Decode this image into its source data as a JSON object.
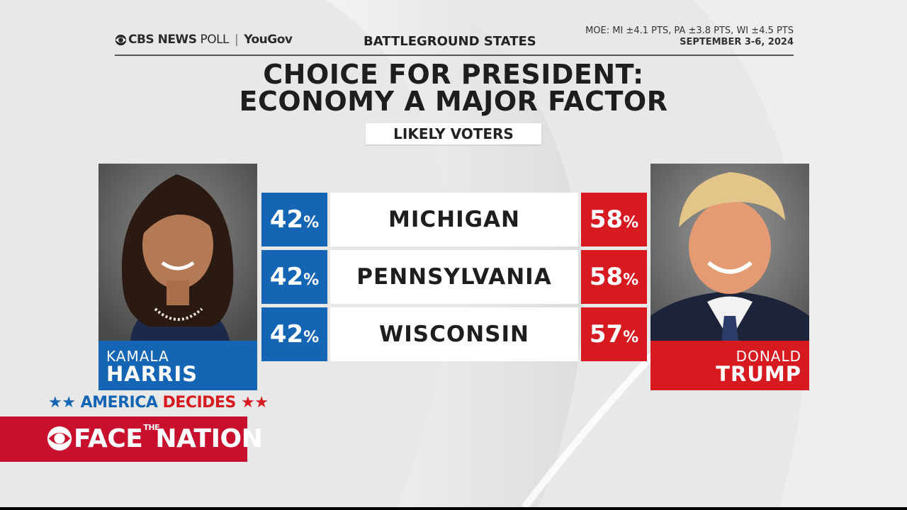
{
  "header": {
    "network": "CBS NEWS",
    "poll_label": "POLL",
    "partner": "YouGov",
    "topic": "BATTLEGROUND STATES",
    "moe": "MOE: MI ±4.1 PTS, PA ±3.8 PTS, WI ±4.5 PTS",
    "dates": "SEPTEMBER 3-6, 2024"
  },
  "title_line1": "CHOICE FOR PRESIDENT:",
  "title_line2": "ECONOMY A MAJOR FACTOR",
  "subtitle": "LIKELY VOTERS",
  "candidates": {
    "left": {
      "first": "KAMALA",
      "last": "HARRIS",
      "color": "#1565b5"
    },
    "right": {
      "first": "DONALD",
      "last": "TRUMP",
      "color": "#d71920"
    }
  },
  "chart_data": {
    "type": "table",
    "title": "CHOICE FOR PRESIDENT: ECONOMY A MAJOR FACTOR",
    "subtitle": "LIKELY VOTERS",
    "columns": [
      "HARRIS",
      "STATE",
      "TRUMP"
    ],
    "rows": [
      {
        "state": "MICHIGAN",
        "harris": 42,
        "trump": 58,
        "harris_text": "42",
        "trump_text": "58",
        "unit": "%"
      },
      {
        "state": "PENNSYLVANIA",
        "harris": 42,
        "trump": 58,
        "harris_text": "42",
        "trump_text": "58",
        "unit": "%"
      },
      {
        "state": "WISCONSIN",
        "harris": 42,
        "trump": 57,
        "harris_text": "42",
        "trump_text": "57",
        "unit": "%"
      }
    ]
  },
  "footer": {
    "america": "AMERICA",
    "decides": "DECIDES",
    "stars": "★★",
    "show_face": "FACE",
    "show_the": "THE",
    "show_nation": "NATION"
  },
  "colors": {
    "dem": "#1565b5",
    "rep": "#d71920",
    "brand_red": "#c8102e"
  }
}
